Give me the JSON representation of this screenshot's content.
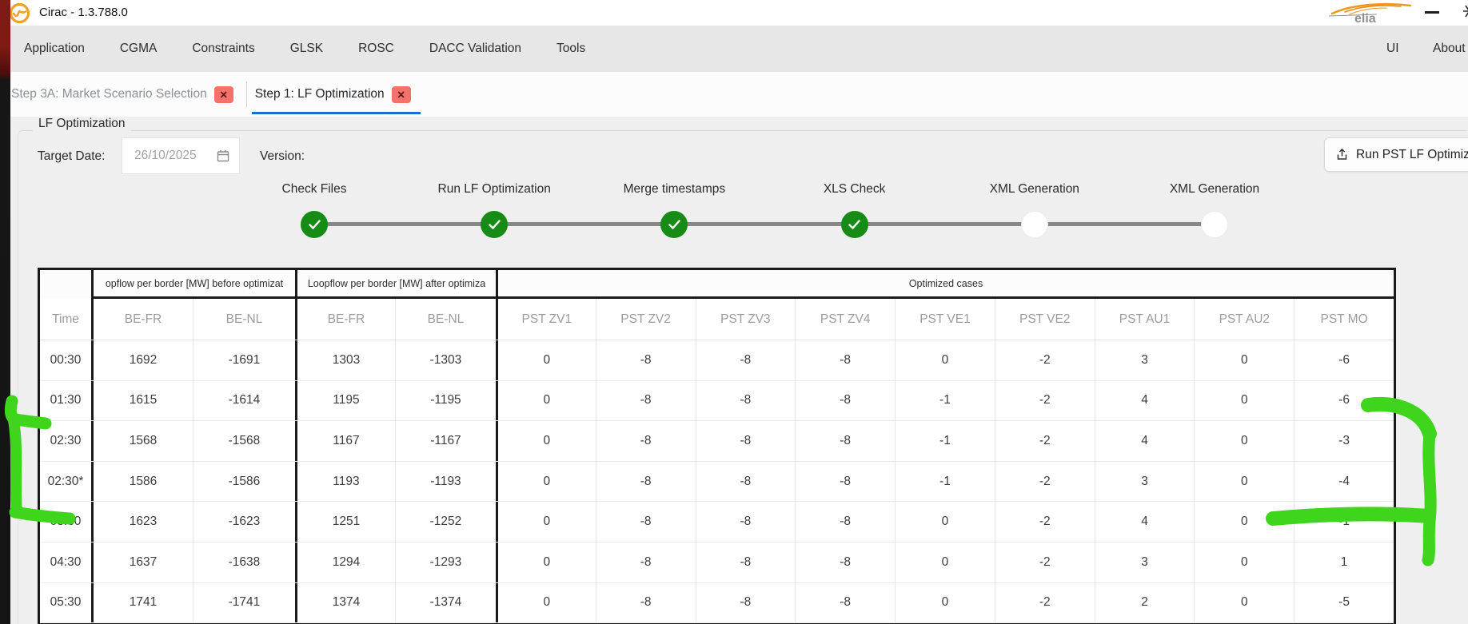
{
  "window": {
    "title": "Cirac - 1.3.788.0",
    "brand": "elia"
  },
  "menu": {
    "items": [
      "Application",
      "CGMA",
      "Constraints",
      "GLSK",
      "ROSC",
      "DACC Validation",
      "Tools"
    ],
    "right_items": [
      "UI",
      "About"
    ]
  },
  "tabs": [
    {
      "label": "Step 3A: Market Scenario Selection",
      "active": false
    },
    {
      "label": "Step 1: LF Optimization",
      "active": true
    }
  ],
  "icons": {
    "close_glyph": "✕"
  },
  "panel": {
    "legend": "LF Optimization",
    "target_date_label": "Target Date:",
    "target_date_value": "26/10/2025",
    "version_label": "Version:",
    "run_label": "Run PST LF Optimiz"
  },
  "stepper": {
    "steps": [
      {
        "label": "Check Files",
        "done": true
      },
      {
        "label": "Run LF Optimization",
        "done": true
      },
      {
        "label": "Merge timestamps",
        "done": true
      },
      {
        "label": "XLS Check",
        "done": true
      },
      {
        "label": "XML Generation",
        "done": false
      },
      {
        "label": "XML Generation",
        "done": false
      }
    ]
  },
  "table": {
    "group_headers": [
      "",
      "opflow per border [MW] before optimizat",
      "Loopflow per border [MW] after optimiza",
      "Optimized cases"
    ],
    "columns": [
      "Time",
      "BE-FR",
      "BE-NL",
      "BE-FR",
      "BE-NL",
      "PST ZV1",
      "PST ZV2",
      "PST ZV3",
      "PST ZV4",
      "PST VE1",
      "PST VE2",
      "PST AU1",
      "PST AU2",
      "PST MO"
    ],
    "rows": [
      {
        "time": "00:30",
        "values": [
          1692,
          -1691,
          1303,
          -1303,
          0,
          -8,
          -8,
          -8,
          0,
          -2,
          3,
          0,
          -6
        ]
      },
      {
        "time": "01:30",
        "values": [
          1615,
          -1614,
          1195,
          -1195,
          0,
          -8,
          -8,
          -8,
          -1,
          -2,
          4,
          0,
          -6
        ]
      },
      {
        "time": "02:30",
        "values": [
          1568,
          -1568,
          1167,
          -1167,
          0,
          -8,
          -8,
          -8,
          -1,
          -2,
          4,
          0,
          -3
        ]
      },
      {
        "time": "02:30*",
        "values": [
          1586,
          -1586,
          1193,
          -1193,
          0,
          -8,
          -8,
          -8,
          -1,
          -2,
          3,
          0,
          -4
        ]
      },
      {
        "time": "03:30",
        "values": [
          1623,
          -1623,
          1251,
          -1252,
          0,
          -8,
          -8,
          -8,
          0,
          -2,
          4,
          0,
          -1
        ]
      },
      {
        "time": "04:30",
        "values": [
          1637,
          -1638,
          1294,
          -1293,
          0,
          -8,
          -8,
          -8,
          0,
          -2,
          3,
          0,
          1
        ]
      },
      {
        "time": "05:30",
        "values": [
          1741,
          -1741,
          1374,
          -1374,
          0,
          -8,
          -8,
          -8,
          0,
          -2,
          2,
          0,
          -5
        ]
      }
    ]
  },
  "annotations": {
    "color": "#3fd51d",
    "marks": [
      "left-bracket-rows-0130-0330",
      "right-bracket-pst-mo"
    ]
  },
  "colors": {
    "step_done_green": "#168c16",
    "tab_underline_blue": "#1a70c8",
    "tab_close_red": "#f4716c",
    "annotation_green": "#3fd51d",
    "brand_orange": "#f0981e"
  }
}
